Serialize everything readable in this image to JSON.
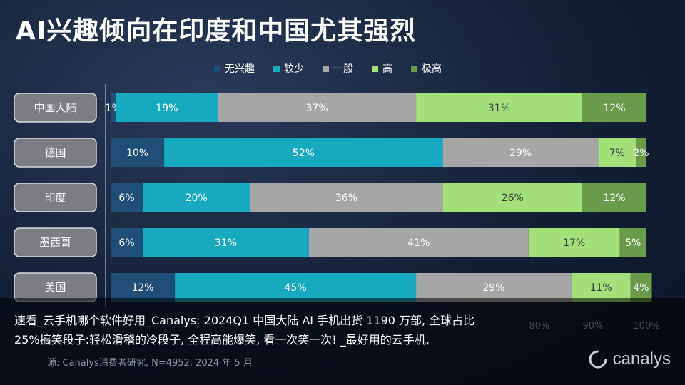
{
  "title": "AI兴趣倾向在印度和中国尤其强烈",
  "legend": [
    {
      "label": "无兴趣",
      "color": "#1f4e79"
    },
    {
      "label": "较少",
      "color": "#17a9c0"
    },
    {
      "label": "一般",
      "color": "#a6a6a6"
    },
    {
      "label": "高",
      "color": "#a3e07a"
    },
    {
      "label": "极高",
      "color": "#6a9a4a"
    }
  ],
  "chart_data": {
    "type": "bar",
    "orientation": "horizontal",
    "stacked": true,
    "categories": [
      "中国大陆",
      "德国",
      "印度",
      "墨西哥",
      "美国"
    ],
    "series": [
      {
        "name": "无兴趣",
        "values": [
          1,
          10,
          6,
          6,
          12
        ],
        "color": "#1f4e79"
      },
      {
        "name": "较少",
        "values": [
          19,
          52,
          20,
          31,
          45
        ],
        "color": "#17a9c0"
      },
      {
        "name": "一般",
        "values": [
          37,
          29,
          36,
          41,
          29
        ],
        "color": "#a6a6a6"
      },
      {
        "name": "高",
        "values": [
          31,
          7,
          26,
          17,
          11
        ],
        "color": "#a3e07a"
      },
      {
        "name": "极高",
        "values": [
          12,
          2,
          12,
          5,
          4
        ],
        "color": "#6a9a4a"
      }
    ],
    "xlim": [
      0,
      100
    ],
    "visible_x_ticks": [
      "80%",
      "90%",
      "100%"
    ],
    "legend_position": "top"
  },
  "caption": "速看_云手机哪个软件好用_Canalys: 2024Q1 中国大陆 AI 手机出货 1190 万部, 全球占比 25%搞笑段子:轻松滑稽的冷段子, 全程高能爆笑, 看一次笑一次! _最好用的云手机,",
  "source": "源: Canalys消费者研究, N=4952, 2024 年 5 月",
  "brand": "canalys"
}
